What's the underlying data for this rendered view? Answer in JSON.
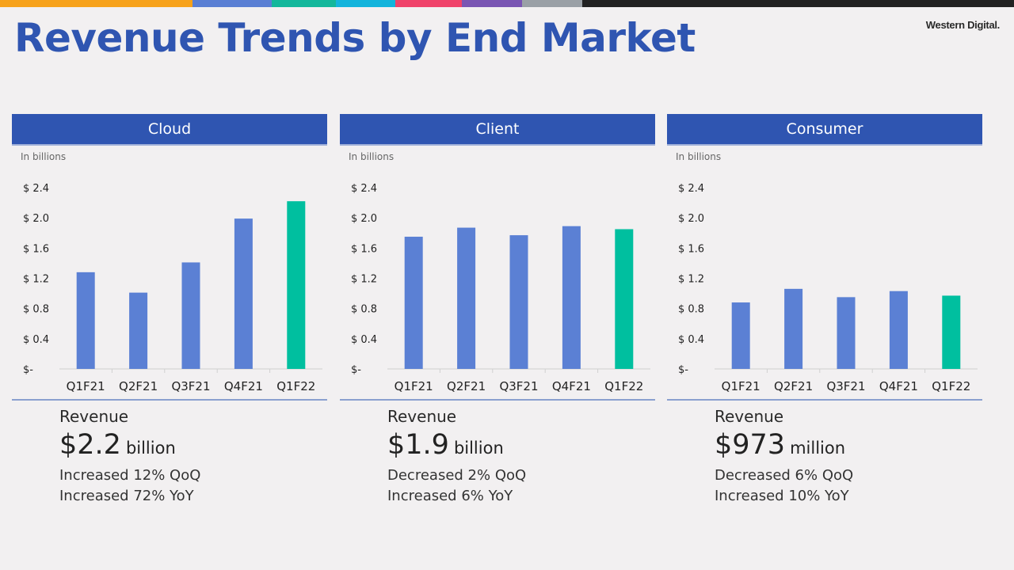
{
  "title": "Revenue Trends by End Market",
  "logo": "Western Digital.",
  "stripe_colors": [
    "#f7a21b",
    "#5a7fd4",
    "#13b79b",
    "#13b4dc",
    "#f0426a",
    "#7a55b3",
    "#9aa0a6",
    "#222222"
  ],
  "colors": {
    "bar": "#5b80d4",
    "highlight": "#00bf9f",
    "header": "#2f55b1"
  },
  "panels": [
    {
      "name": "Cloud",
      "unit_label": "In billions",
      "revenue_label": "Revenue",
      "revenue_value": "$2.2",
      "revenue_unit": "billion",
      "stat_qoq": "Increased 12% QoQ",
      "stat_yoy": "Increased 72% YoY"
    },
    {
      "name": "Client",
      "unit_label": "In billions",
      "revenue_label": "Revenue",
      "revenue_value": "$1.9",
      "revenue_unit": "billion",
      "stat_qoq": "Decreased 2% QoQ",
      "stat_yoy": "Increased 6% YoY"
    },
    {
      "name": "Consumer",
      "unit_label": "In billions",
      "revenue_label": "Revenue",
      "revenue_value": "$973",
      "revenue_unit": "million",
      "stat_qoq": "Decreased 6% QoQ",
      "stat_yoy": "Increased 10% YoY"
    }
  ],
  "chart_data": [
    {
      "type": "bar",
      "title": "Cloud",
      "categories": [
        "Q1F21",
        "Q2F21",
        "Q3F21",
        "Q4F21",
        "Q1F22"
      ],
      "values": [
        1.28,
        1.01,
        1.41,
        1.99,
        2.22
      ],
      "highlight_index": 4,
      "ylim": [
        0,
        2.4
      ],
      "ytick_values": [
        0,
        0.4,
        0.8,
        1.2,
        1.6,
        2.0,
        2.4
      ],
      "ytick_labels": [
        "$-",
        "$ 0.4",
        "$ 0.8",
        "$ 1.2",
        "$ 1.6",
        "$ 2.0",
        "$ 2.4"
      ],
      "grid": false
    },
    {
      "type": "bar",
      "title": "Client",
      "categories": [
        "Q1F21",
        "Q2F21",
        "Q3F21",
        "Q4F21",
        "Q1F22"
      ],
      "values": [
        1.75,
        1.87,
        1.77,
        1.89,
        1.85
      ],
      "highlight_index": 4,
      "ylim": [
        0,
        2.4
      ],
      "ytick_values": [
        0,
        0.4,
        0.8,
        1.2,
        1.6,
        2.0,
        2.4
      ],
      "ytick_labels": [
        "$-",
        "$ 0.4",
        "$ 0.8",
        "$ 1.2",
        "$ 1.6",
        "$ 2.0",
        "$ 2.4"
      ],
      "grid": false
    },
    {
      "type": "bar",
      "title": "Consumer",
      "categories": [
        "Q1F21",
        "Q2F21",
        "Q3F21",
        "Q4F21",
        "Q1F22"
      ],
      "values": [
        0.88,
        1.06,
        0.95,
        1.03,
        0.97
      ],
      "highlight_index": 4,
      "ylim": [
        0,
        2.4
      ],
      "ytick_values": [
        0,
        0.4,
        0.8,
        1.2,
        1.6,
        2.0,
        2.4
      ],
      "ytick_labels": [
        "$-",
        "$ 0.4",
        "$ 0.8",
        "$ 1.2",
        "$ 1.6",
        "$ 2.0",
        "$ 2.4"
      ],
      "grid": false
    }
  ]
}
